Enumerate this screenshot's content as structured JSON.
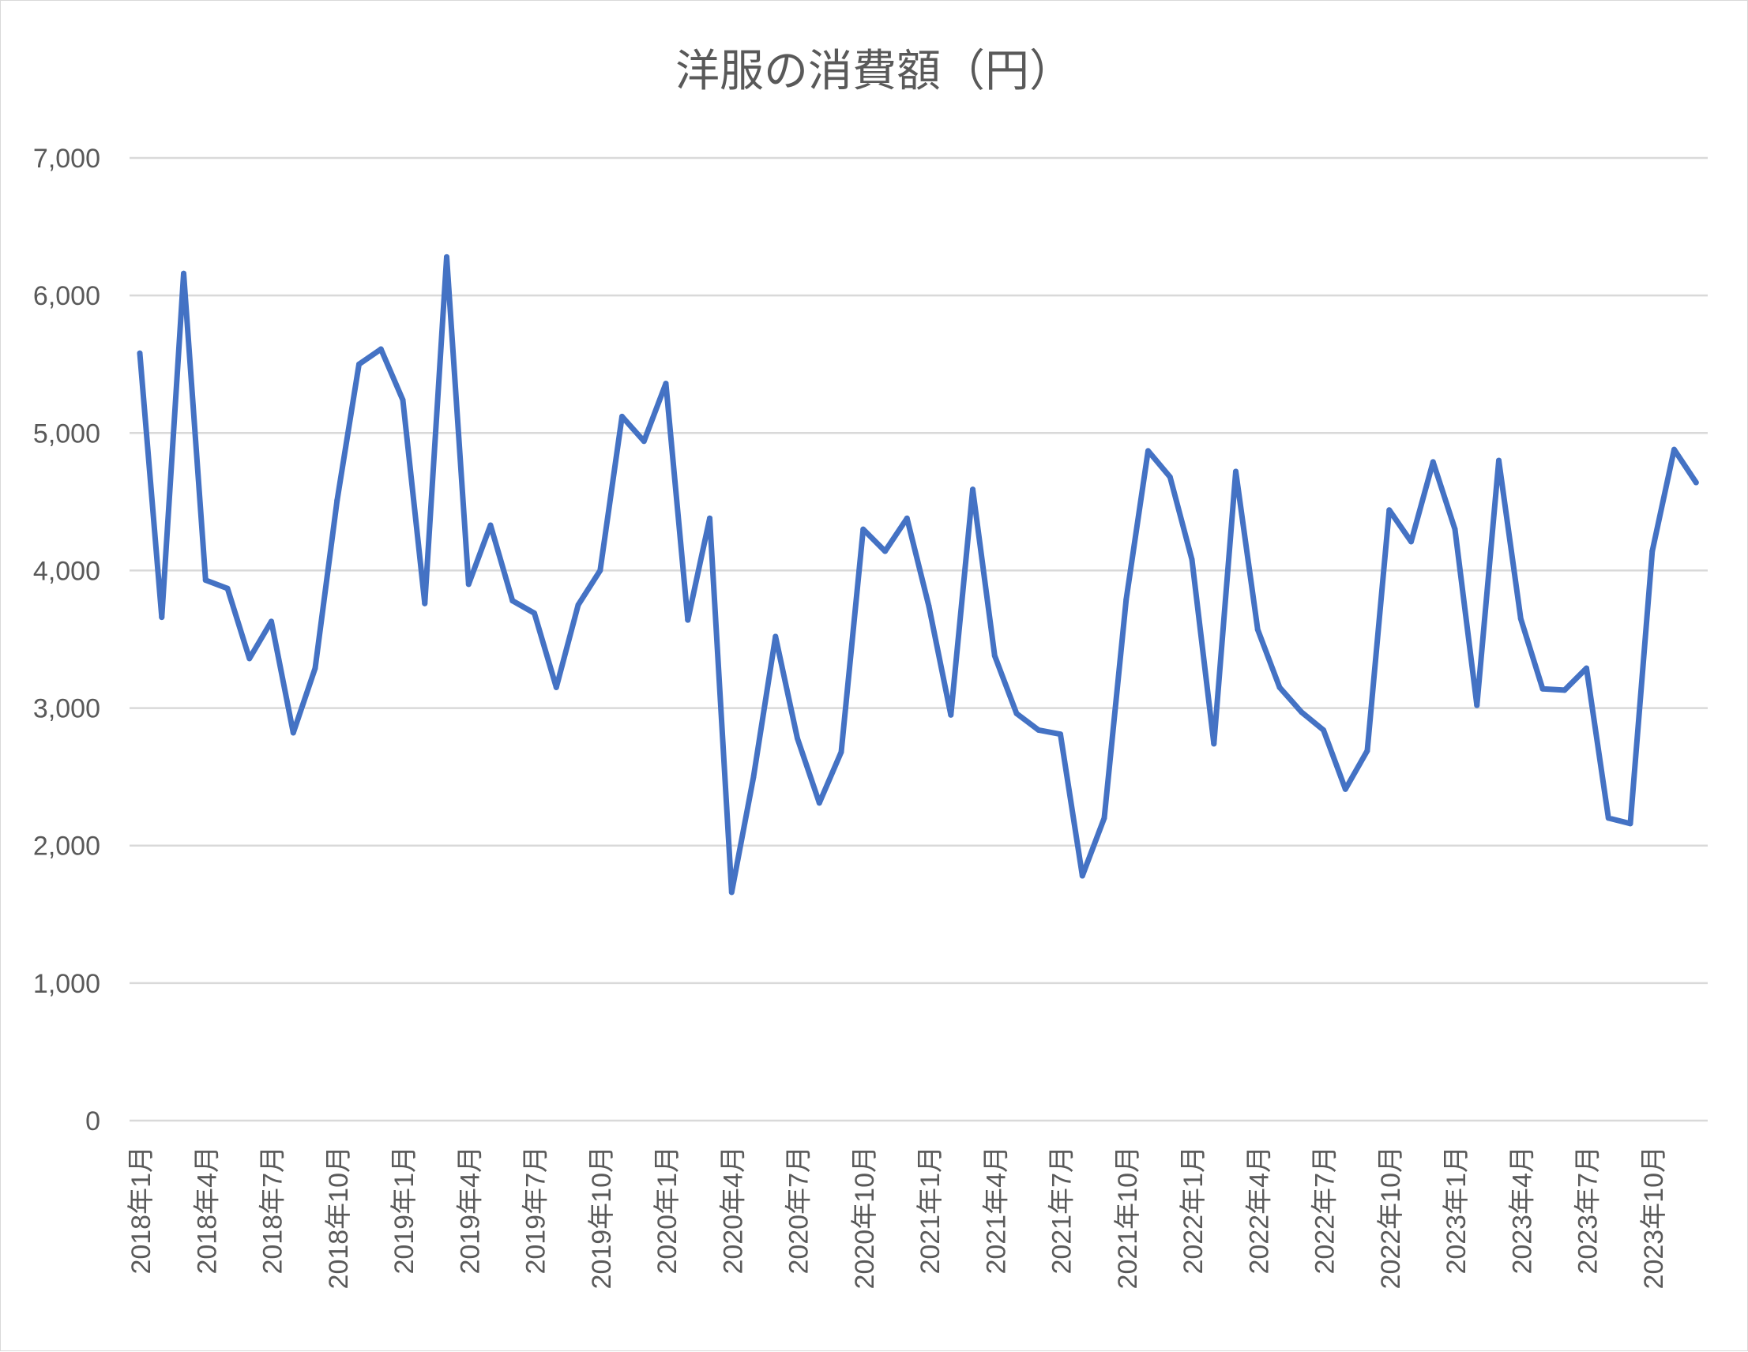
{
  "chart_data": {
    "type": "line",
    "title": "洋服の消費額（円）",
    "xlabel": "",
    "ylabel": "",
    "ylim": [
      0,
      7000
    ],
    "y_ticks": [
      "0",
      "1,000",
      "2,000",
      "3,000",
      "4,000",
      "5,000",
      "6,000",
      "7,000"
    ],
    "y_tick_values": [
      0,
      1000,
      2000,
      3000,
      4000,
      5000,
      6000,
      7000
    ],
    "x": [
      "2018年1月",
      "2018年2月",
      "2018年3月",
      "2018年4月",
      "2018年5月",
      "2018年6月",
      "2018年7月",
      "2018年8月",
      "2018年9月",
      "2018年10月",
      "2018年11月",
      "2018年12月",
      "2019年1月",
      "2019年2月",
      "2019年3月",
      "2019年4月",
      "2019年5月",
      "2019年6月",
      "2019年7月",
      "2019年8月",
      "2019年9月",
      "2019年10月",
      "2019年11月",
      "2019年12月",
      "2020年1月",
      "2020年2月",
      "2020年3月",
      "2020年4月",
      "2020年5月",
      "2020年6月",
      "2020年7月",
      "2020年8月",
      "2020年9月",
      "2020年10月",
      "2020年11月",
      "2020年12月",
      "2021年1月",
      "2021年2月",
      "2021年3月",
      "2021年4月",
      "2021年5月",
      "2021年6月",
      "2021年7月",
      "2021年8月",
      "2021年9月",
      "2021年10月",
      "2021年11月",
      "2021年12月",
      "2022年1月",
      "2022年2月",
      "2022年3月",
      "2022年4月",
      "2022年5月",
      "2022年6月",
      "2022年7月",
      "2022年8月",
      "2022年9月",
      "2022年10月",
      "2022年11月",
      "2022年12月",
      "2023年1月",
      "2023年2月",
      "2023年3月",
      "2023年4月",
      "2023年5月",
      "2023年6月",
      "2023年7月",
      "2023年8月",
      "2023年9月",
      "2023年10月",
      "2023年11月",
      "2023年12月"
    ],
    "x_tick_labels": [
      "2018年1月",
      "2018年4月",
      "2018年7月",
      "2018年10月",
      "2019年1月",
      "2019年4月",
      "2019年7月",
      "2019年10月",
      "2020年1月",
      "2020年4月",
      "2020年7月",
      "2020年10月",
      "2021年1月",
      "2021年4月",
      "2021年7月",
      "2021年10月",
      "2022年1月",
      "2022年4月",
      "2022年7月",
      "2022年10月",
      "2023年1月",
      "2023年4月",
      "2023年7月",
      "2023年10月"
    ],
    "series": [
      {
        "color": "#4472c4",
        "values": [
          5580,
          3660,
          6160,
          3930,
          3870,
          3360,
          3630,
          2820,
          3290,
          4510,
          5500,
          5610,
          5240,
          3760,
          6280,
          3900,
          4330,
          3780,
          3690,
          3150,
          3750,
          4000,
          5120,
          4940,
          5360,
          3640,
          4380,
          1660,
          2500,
          3520,
          2780,
          2310,
          2680,
          4300,
          4140,
          4380,
          3740,
          2950,
          4590,
          3380,
          2960,
          2840,
          2810,
          1780,
          2200,
          3790,
          4870,
          4680,
          4080,
          2740,
          4720,
          3570,
          3150,
          2970,
          2840,
          2410,
          2690,
          4440,
          4210,
          4790,
          4300,
          3020,
          4800,
          3650,
          3140,
          3130,
          3290,
          2200,
          2160,
          4140,
          4880,
          4640
        ]
      }
    ],
    "grid": true,
    "legend": "none"
  }
}
